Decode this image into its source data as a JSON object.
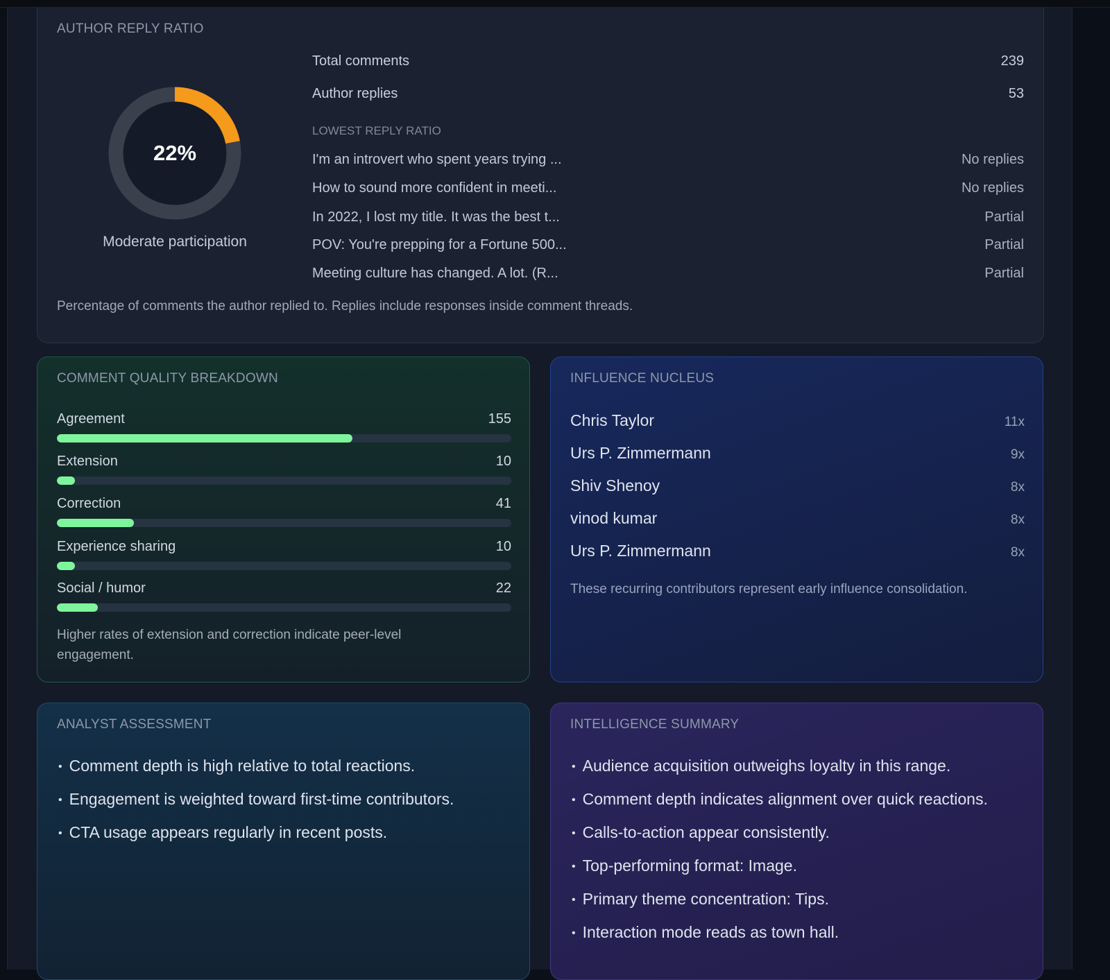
{
  "reply_ratio": {
    "title": "AUTHOR REPLY RATIO",
    "percent_label": "22%",
    "percent_value": 22,
    "caption": "Moderate participation",
    "total_comments_label": "Total comments",
    "total_comments_value": "239",
    "author_replies_label": "Author replies",
    "author_replies_value": "53",
    "lowest_title": "LOWEST REPLY RATIO",
    "lowest": [
      {
        "text": "I'm an introvert who spent years trying ...",
        "status": "No replies"
      },
      {
        "text": "How to sound more confident in meeti...",
        "status": "No replies"
      },
      {
        "text": "In 2022, I lost my title. It was the best t...",
        "status": "Partial"
      },
      {
        "text": "POV: You're prepping for a Fortune 500...",
        "status": "Partial"
      },
      {
        "text": "Meeting culture has changed. A lot. (R...",
        "status": "Partial"
      }
    ],
    "note": "Percentage of comments the author replied to. Replies include responses inside comment threads.",
    "colors": {
      "accent": "#f59a1b",
      "track": "#3a404c",
      "center": "#141a27"
    }
  },
  "quality": {
    "title": "COMMENT QUALITY BREAKDOWN",
    "max": 239,
    "items": [
      {
        "label": "Agreement",
        "value": "155",
        "fraction": 0.65
      },
      {
        "label": "Extension",
        "value": "10",
        "fraction": 0.04
      },
      {
        "label": "Correction",
        "value": "41",
        "fraction": 0.17
      },
      {
        "label": "Experience sharing",
        "value": "10",
        "fraction": 0.04
      },
      {
        "label": "Social / humor",
        "value": "22",
        "fraction": 0.09
      }
    ],
    "note": "Higher rates of extension and correction indicate peer-level engagement.",
    "colors": {
      "fill": "#7ef59c"
    }
  },
  "influence": {
    "title": "INFLUENCE NUCLEUS",
    "people": [
      {
        "name": "Chris Taylor",
        "count": "11x"
      },
      {
        "name": "Urs P. Zimmermann",
        "count": "9x"
      },
      {
        "name": "Shiv Shenoy",
        "count": "8x"
      },
      {
        "name": "vinod kumar",
        "count": "8x"
      },
      {
        "name": "Urs P. Zimmermann",
        "count": "8x"
      }
    ],
    "note": "These recurring contributors represent early influence consolidation."
  },
  "analyst": {
    "title": "ANALYST ASSESSMENT",
    "bullets": [
      "Comment depth is high relative to total reactions.",
      "Engagement is weighted toward first-time contributors.",
      "CTA usage appears regularly in recent posts."
    ]
  },
  "intel": {
    "title": "INTELLIGENCE SUMMARY",
    "bullets": [
      "Audience acquisition outweighs loyalty in this range.",
      "Comment depth indicates alignment over quick reactions.",
      "Calls-to-action appear consistently.",
      "Top-performing format: Image.",
      "Primary theme concentration: Tips.",
      "Interaction mode reads as town hall."
    ]
  }
}
